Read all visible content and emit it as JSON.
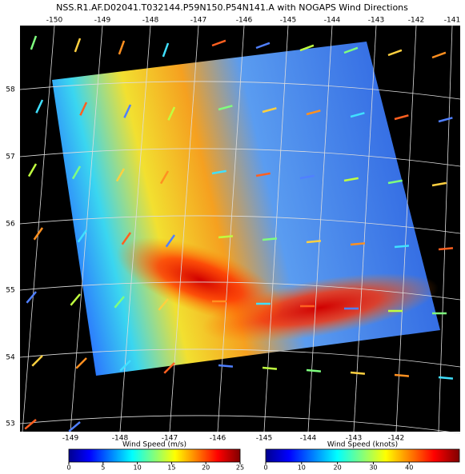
{
  "header": {
    "title": "NSS.R1.AF.D02041.T032144.P59N150.P54N141.A with NOGAPS Wind Directions"
  },
  "map": {
    "top_longitudes": [
      "-150",
      "-149",
      "-148",
      "-147",
      "-146",
      "-145",
      "-144",
      "-143",
      "-142",
      "-141"
    ],
    "bottom_longitudes": [
      "-149",
      "-148",
      "-147",
      "-146",
      "-145",
      "-144",
      "-143",
      "-142"
    ],
    "latitudes": [
      "58",
      "57",
      "56",
      "55",
      "54",
      "53"
    ]
  },
  "colorbars": [
    {
      "label": "Wind Speed (m/s)",
      "range": [
        0,
        25
      ],
      "ticks": [
        0,
        5,
        10,
        15,
        20,
        25
      ]
    },
    {
      "label": "Wind Speed (knots)",
      "range": [
        0,
        54
      ],
      "ticks": [
        0,
        10,
        20,
        30,
        40
      ]
    }
  ]
}
